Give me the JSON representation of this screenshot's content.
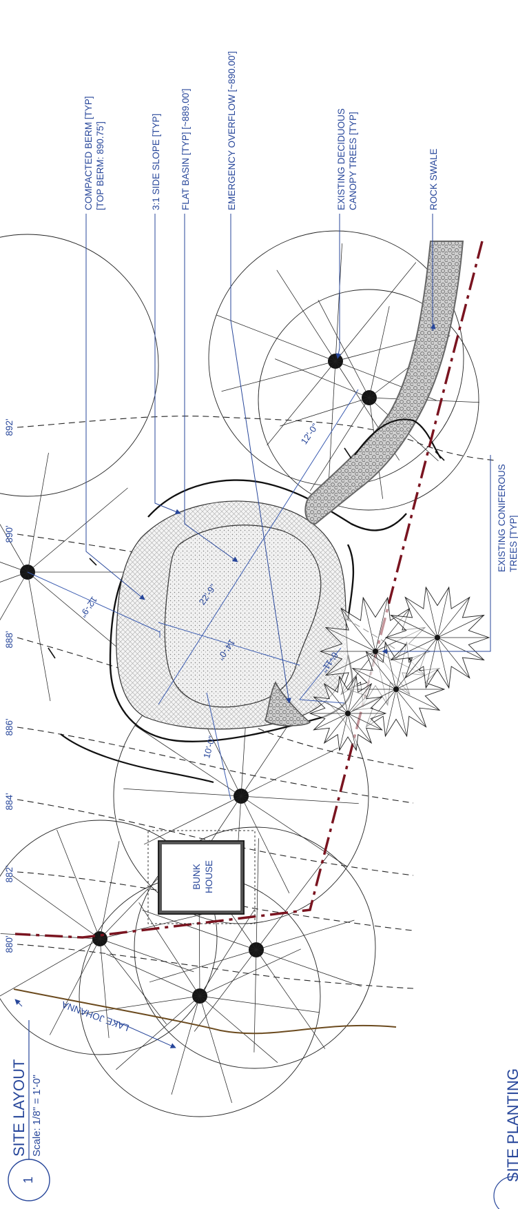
{
  "sheet": {
    "detail_number": "1",
    "title": "SITE LAYOUT",
    "scale": "Scale: 1/8\" = 1'-0\"",
    "next_detail_title_fragment": "SITE PLANTING"
  },
  "contours": [
    "880'",
    "882'",
    "884'",
    "886'",
    "888'",
    "890'",
    "892'"
  ],
  "callouts": {
    "berm_line1": "COMPACTED BERM [TYP]",
    "berm_line2": "[TOP BERM: 890.75']",
    "side_slope": "3:1 SIDE SLOPE [TYP]",
    "flat_basin": "FLAT BASIN [TYP] [~889.00']",
    "overflow": "EMERGENCY OVERFLOW [~890.00']",
    "deciduous_line1": "EXISTING DECIDUOUS",
    "deciduous_line2": "CANOPY TREES [TYP]",
    "rock_swale": "ROCK SWALE",
    "coniferous_line1": "EXISTING CONIFEROUS",
    "coniferous_line2": "TREES [TYP]"
  },
  "dimensions": {
    "d1": "12'-0\"",
    "d2": "22'-9\"",
    "d3": "12'-9\"",
    "d4": "14'-0\"",
    "d5": "6'-11\"",
    "d6": "10'-0\""
  },
  "building": {
    "line1": "BUNK",
    "line2": "HOUSE"
  },
  "water": {
    "label": "LAKE JOHANNA"
  },
  "colors": {
    "annotation": "#27469a",
    "property_line": "#7a1420",
    "shoreline": "#6b4a1e",
    "linework": "#222222"
  }
}
